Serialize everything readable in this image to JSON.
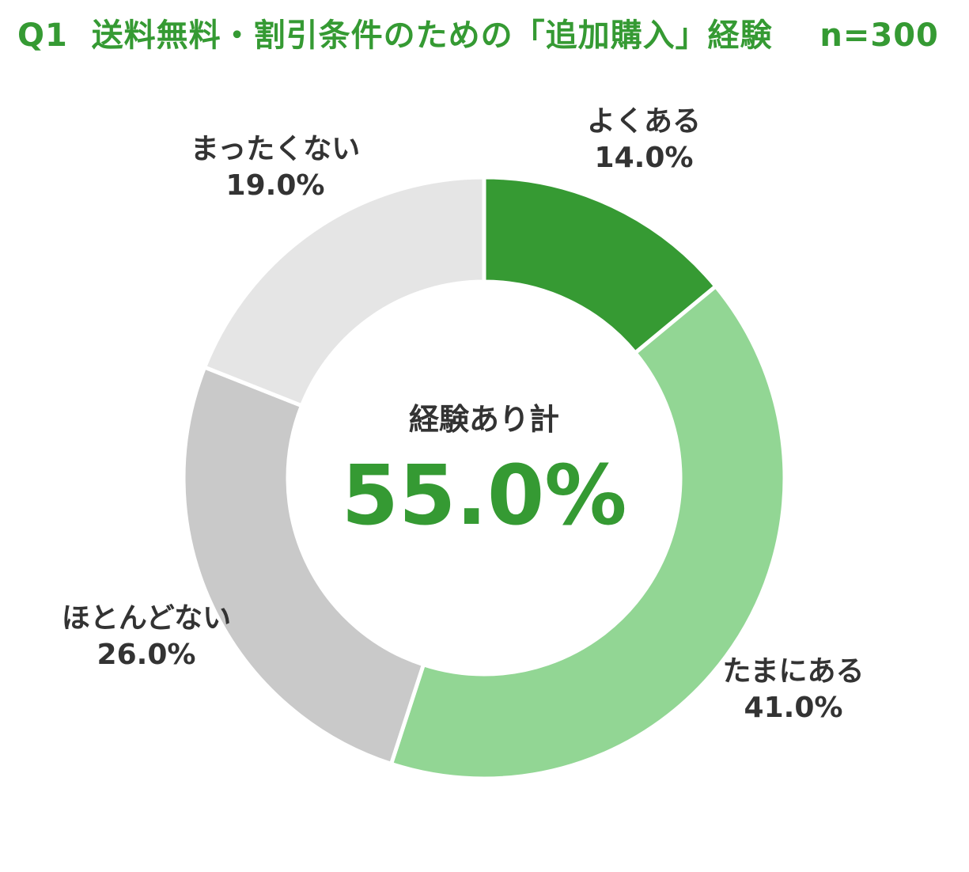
{
  "title": "Q1  送料無料・割引条件のための「追加購入」経験    n=300",
  "chart_data": {
    "type": "pie",
    "donut": true,
    "title": "Q1  送料無料・割引条件のための「追加購入」経験    n=300",
    "categories": [
      "よくある",
      "たまにある",
      "ほとんどない",
      "まったくない"
    ],
    "values": [
      14.0,
      41.0,
      26.0,
      19.0
    ],
    "value_labels": [
      "14.0%",
      "41.0%",
      "26.0%",
      "19.0%"
    ],
    "colors": [
      "#369a33",
      "#92d694",
      "#c9c9c9",
      "#e5e5e5"
    ],
    "center_label": "経験あり計",
    "center_value": "55.0%"
  }
}
